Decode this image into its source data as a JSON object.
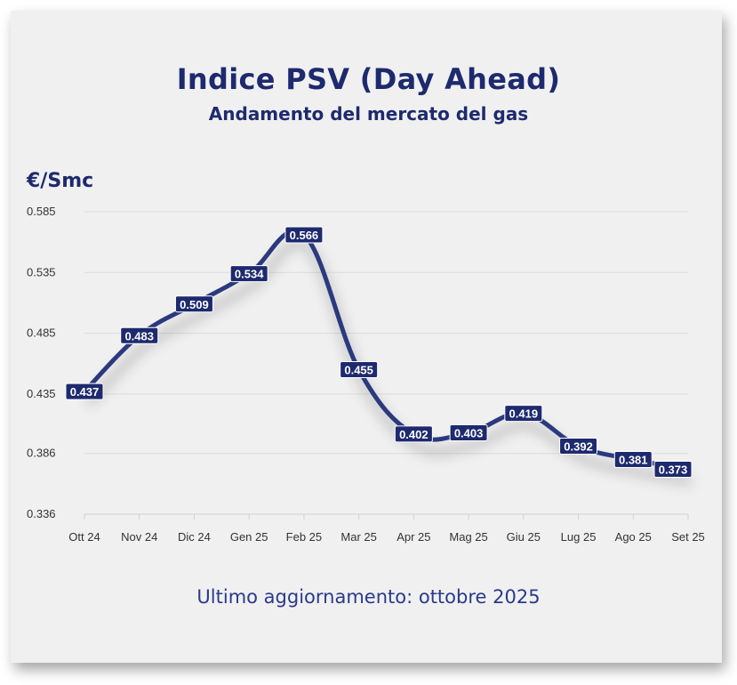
{
  "header": {
    "title": "Indice PSV (Day Ahead)",
    "subtitle": "Andamento del mercato del gas",
    "unit": "€/Smc"
  },
  "footer": {
    "text": "Ultimo aggiornamento: ottobre 2025"
  },
  "chart_data": {
    "type": "line",
    "title": "Indice PSV (Day Ahead)",
    "subtitle": "Andamento del mercato del gas",
    "ylabel": "€/Smc",
    "xlabel": "",
    "categories": [
      "Ott 24",
      "Nov 24",
      "Dic 24",
      "Gen 25",
      "Feb 25",
      "Mar 25",
      "Apr 25",
      "Mag 25",
      "Giu 25",
      "Lug 25",
      "Ago 25",
      "Set 25"
    ],
    "values": [
      0.437,
      0.483,
      0.509,
      0.534,
      0.566,
      0.455,
      0.402,
      0.403,
      0.419,
      0.392,
      0.381,
      0.373
    ],
    "yticks": [
      "0.336",
      "0.386",
      "0.435",
      "0.485",
      "0.535",
      "0.585"
    ],
    "ylim": [
      0.336,
      0.585
    ],
    "grid": true,
    "color": "#2b3a7e"
  }
}
